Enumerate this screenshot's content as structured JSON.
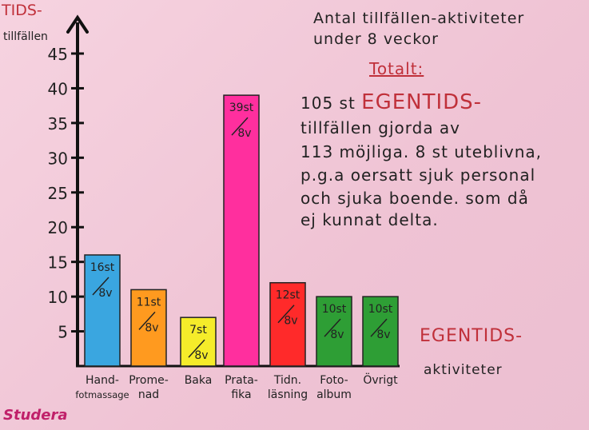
{
  "chart_data": {
    "type": "bar",
    "title_lines": [
      "Antal tillfällen-aktiviteter",
      "under 8 veckor"
    ],
    "ylabel": "TIDS-",
    "ylabel_sub": "tillfällen",
    "xlabel": "EGENTIDS-",
    "xlabel_sub": "aktiviteter",
    "ylim": [
      0,
      45
    ],
    "yticks": [
      5,
      10,
      15,
      20,
      25,
      30,
      35,
      40,
      45
    ],
    "categories": [
      [
        "Hand-",
        "fotmassage"
      ],
      [
        "Prome-",
        "nad"
      ],
      [
        "Baka"
      ],
      [
        "Prata-",
        "fika"
      ],
      [
        "Tidn.",
        "läsning"
      ],
      [
        "Foto-",
        "album"
      ],
      [
        "Övrigt"
      ]
    ],
    "values": [
      16,
      11,
      7,
      39,
      12,
      10,
      10
    ],
    "data_labels": [
      [
        "16st",
        "8v"
      ],
      [
        "11st",
        "8v"
      ],
      [
        "7st",
        "8v"
      ],
      [
        "39st",
        "8v"
      ],
      [
        "12st",
        "8v"
      ],
      [
        "10st",
        "8v"
      ],
      [
        "10st",
        "8v"
      ]
    ],
    "colors": [
      "#3aa6e0",
      "#ff9a1f",
      "#f5ec2a",
      "#ff2f9e",
      "#ff2a2a",
      "#2e9e35",
      "#2e9e35"
    ]
  },
  "annotation": {
    "heading": "Totalt:",
    "line1_prefix": "105 st ",
    "line1_emphasis": "EGENTIDS-",
    "lines": [
      "tillfällen gjorda av",
      "113 möjliga. 8 st uteblivna,",
      "p.g.a oersatt sjuk personal",
      "och sjuka boende. som då",
      "ej kunnat delta."
    ]
  },
  "signature": "Studera"
}
